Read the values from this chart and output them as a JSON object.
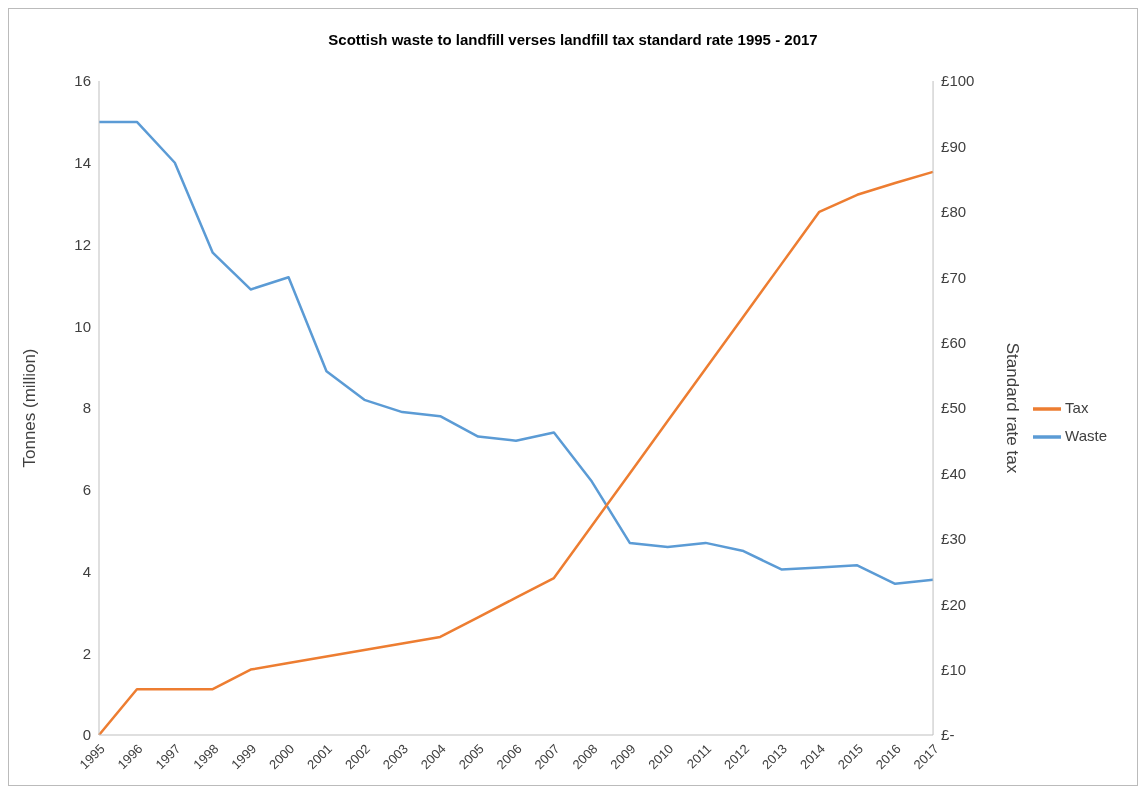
{
  "chart_data": {
    "type": "line",
    "title": "Scottish waste to landfill verses landfill tax standard rate 1995  - 2017",
    "ylabel": "Tonnes (million)",
    "y2label": "Standard rate tax",
    "categories": [
      "1995",
      "1996",
      "1997",
      "1998",
      "1999",
      "2000",
      "2001",
      "2002",
      "2003",
      "2004",
      "2005",
      "2006",
      "2007",
      "2008",
      "2009",
      "2010",
      "2011",
      "2012",
      "2013",
      "2014",
      "2015",
      "2016",
      "2017"
    ],
    "series": [
      {
        "name": "Waste",
        "color": "#5b9bd5",
        "values": [
          15.0,
          15.0,
          14.0,
          11.8,
          10.9,
          11.2,
          8.9,
          8.2,
          7.9,
          7.8,
          7.3,
          7.2,
          7.4,
          6.2,
          4.7,
          4.6,
          4.7,
          4.5,
          4.05,
          4.1,
          4.15,
          3.7,
          3.8
        ]
      },
      {
        "name": "Tax",
        "color": "#ed7d31",
        "axis": "y2",
        "values": [
          0,
          7,
          7,
          7,
          10,
          11,
          12,
          13,
          14,
          15,
          18,
          21,
          24,
          32,
          40,
          48,
          56,
          64,
          72,
          80,
          82.6,
          84.4,
          86.1
        ]
      }
    ],
    "ylim": [
      0,
      16
    ],
    "yticks": [
      0,
      2,
      4,
      6,
      8,
      10,
      12,
      14,
      16
    ],
    "y2lim": [
      0,
      100
    ],
    "y2ticks": [
      {
        "value": 0,
        "label": "£-"
      },
      {
        "value": 10,
        "label": "£10"
      },
      {
        "value": 20,
        "label": "£20"
      },
      {
        "value": 30,
        "label": "£30"
      },
      {
        "value": 40,
        "label": "£40"
      },
      {
        "value": 50,
        "label": "£50"
      },
      {
        "value": 60,
        "label": "£60"
      },
      {
        "value": 70,
        "label": "£70"
      },
      {
        "value": 80,
        "label": "£80"
      },
      {
        "value": 90,
        "label": "£90"
      },
      {
        "value": 100,
        "label": "£100"
      }
    ],
    "grid": false,
    "legend": "right",
    "marker": "none",
    "line_style": "solid"
  }
}
